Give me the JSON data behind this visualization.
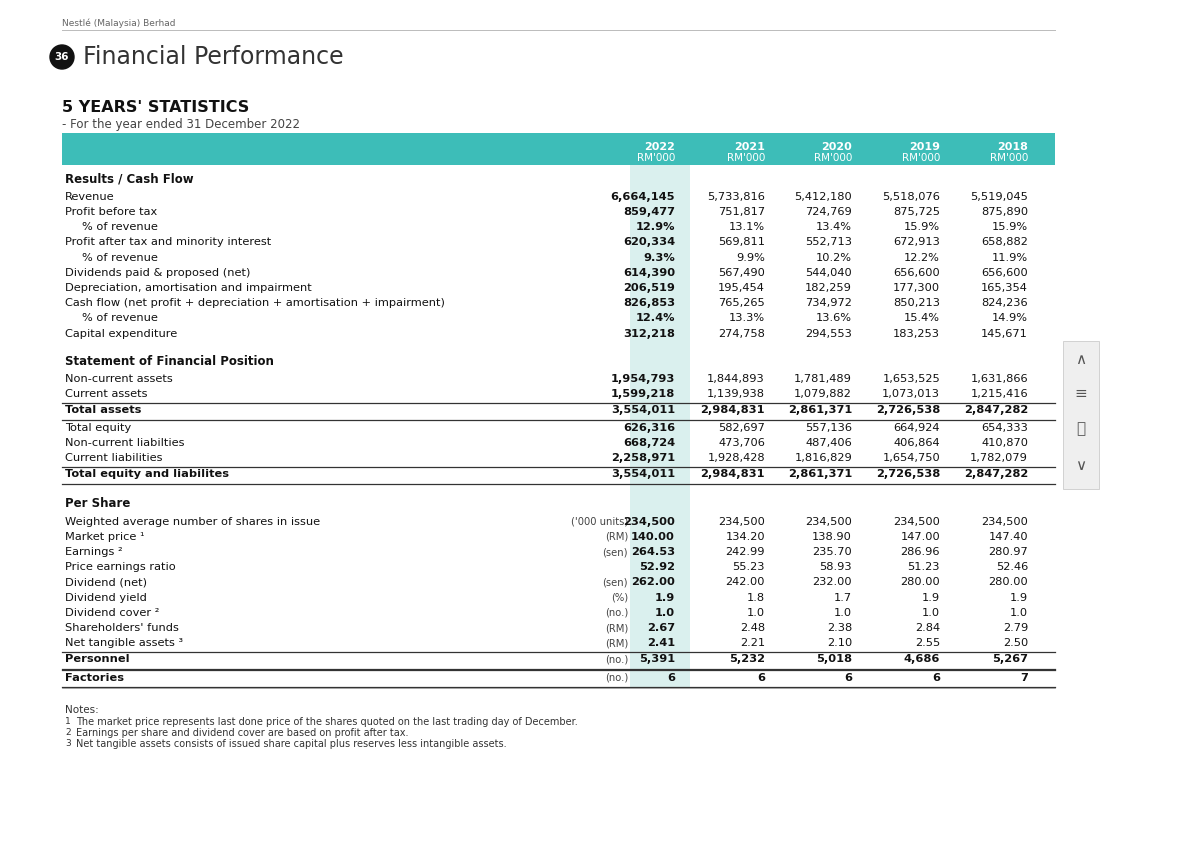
{
  "page_label": "Nestlé (Malaysia) Berhad",
  "page_number": "36",
  "title": "Financial Performance",
  "section_title": "5 YEARS' STATISTICS",
  "subtitle": "- For the year ended 31 December 2022",
  "years": [
    "2022",
    "2021",
    "2020",
    "2019",
    "2018"
  ],
  "header_color": "#3dbdb8",
  "highlight_col_color": "#daf0ee",
  "table_data": [
    {
      "label": "Results / Cash Flow",
      "type": "section_header",
      "values": [
        "",
        "",
        "",
        "",
        ""
      ],
      "unit": ""
    },
    {
      "label": "Revenue",
      "type": "data",
      "values": [
        "6,664,145",
        "5,733,816",
        "5,412,180",
        "5,518,076",
        "5,519,045"
      ],
      "unit": ""
    },
    {
      "label": "Profit before tax",
      "type": "data",
      "values": [
        "859,477",
        "751,817",
        "724,769",
        "875,725",
        "875,890"
      ],
      "unit": ""
    },
    {
      "label": "% of revenue",
      "type": "indent",
      "values": [
        "12.9%",
        "13.1%",
        "13.4%",
        "15.9%",
        "15.9%"
      ],
      "unit": ""
    },
    {
      "label": "Profit after tax and minority interest",
      "type": "data",
      "values": [
        "620,334",
        "569,811",
        "552,713",
        "672,913",
        "658,882"
      ],
      "unit": ""
    },
    {
      "label": "% of revenue",
      "type": "indent",
      "values": [
        "9.3%",
        "9.9%",
        "10.2%",
        "12.2%",
        "11.9%"
      ],
      "unit": ""
    },
    {
      "label": "Dividends paid & proposed (net)",
      "type": "data",
      "values": [
        "614,390",
        "567,490",
        "544,040",
        "656,600",
        "656,600"
      ],
      "unit": ""
    },
    {
      "label": "Depreciation, amortisation and impairment",
      "type": "data",
      "values": [
        "206,519",
        "195,454",
        "182,259",
        "177,300",
        "165,354"
      ],
      "unit": ""
    },
    {
      "label": "Cash flow (net profit + depreciation + amortisation + impairment)",
      "type": "data",
      "values": [
        "826,853",
        "765,265",
        "734,972",
        "850,213",
        "824,236"
      ],
      "unit": ""
    },
    {
      "label": "% of revenue",
      "type": "indent",
      "values": [
        "12.4%",
        "13.3%",
        "13.6%",
        "15.4%",
        "14.9%"
      ],
      "unit": ""
    },
    {
      "label": "Capital expenditure",
      "type": "data",
      "values": [
        "312,218",
        "274,758",
        "294,553",
        "183,253",
        "145,671"
      ],
      "unit": ""
    },
    {
      "label": "Statement of Financial Position",
      "type": "section_header",
      "values": [
        "",
        "",
        "",
        "",
        ""
      ],
      "unit": ""
    },
    {
      "label": "Non-current assets",
      "type": "data",
      "values": [
        "1,954,793",
        "1,844,893",
        "1,781,489",
        "1,653,525",
        "1,631,866"
      ],
      "unit": ""
    },
    {
      "label": "Current assets",
      "type": "data",
      "values": [
        "1,599,218",
        "1,139,938",
        "1,079,882",
        "1,073,013",
        "1,215,416"
      ],
      "unit": ""
    },
    {
      "label": "Total assets",
      "type": "bold_data",
      "values": [
        "3,554,011",
        "2,984,831",
        "2,861,371",
        "2,726,538",
        "2,847,282"
      ],
      "unit": ""
    },
    {
      "label": "Total equity",
      "type": "data",
      "values": [
        "626,316",
        "582,697",
        "557,136",
        "664,924",
        "654,333"
      ],
      "unit": ""
    },
    {
      "label": "Non-current liabilties",
      "type": "data",
      "values": [
        "668,724",
        "473,706",
        "487,406",
        "406,864",
        "410,870"
      ],
      "unit": ""
    },
    {
      "label": "Current liabilities",
      "type": "data",
      "values": [
        "2,258,971",
        "1,928,428",
        "1,816,829",
        "1,654,750",
        "1,782,079"
      ],
      "unit": ""
    },
    {
      "label": "Total equity and liabilites",
      "type": "bold_data",
      "values": [
        "3,554,011",
        "2,984,831",
        "2,861,371",
        "2,726,538",
        "2,847,282"
      ],
      "unit": ""
    },
    {
      "label": "Per Share",
      "type": "section_header",
      "values": [
        "",
        "",
        "",
        "",
        ""
      ],
      "unit": ""
    },
    {
      "label": "Weighted average number of shares in issue",
      "type": "data",
      "values": [
        "234,500",
        "234,500",
        "234,500",
        "234,500",
        "234,500"
      ],
      "unit": "('000 units)"
    },
    {
      "label": "Market price ¹",
      "type": "data",
      "values": [
        "140.00",
        "134.20",
        "138.90",
        "147.00",
        "147.40"
      ],
      "unit": "(RM)"
    },
    {
      "label": "Earnings ²",
      "type": "data",
      "values": [
        "264.53",
        "242.99",
        "235.70",
        "286.96",
        "280.97"
      ],
      "unit": "(sen)"
    },
    {
      "label": "Price earnings ratio",
      "type": "data",
      "values": [
        "52.92",
        "55.23",
        "58.93",
        "51.23",
        "52.46"
      ],
      "unit": ""
    },
    {
      "label": "Dividend (net)",
      "type": "data",
      "values": [
        "262.00",
        "242.00",
        "232.00",
        "280.00",
        "280.00"
      ],
      "unit": "(sen)"
    },
    {
      "label": "Dividend yield",
      "type": "data",
      "values": [
        "1.9",
        "1.8",
        "1.7",
        "1.9",
        "1.9"
      ],
      "unit": "(%)"
    },
    {
      "label": "Dividend cover ²",
      "type": "data",
      "values": [
        "1.0",
        "1.0",
        "1.0",
        "1.0",
        "1.0"
      ],
      "unit": "(no.)"
    },
    {
      "label": "Shareholders' funds",
      "type": "data",
      "values": [
        "2.67",
        "2.48",
        "2.38",
        "2.84",
        "2.79"
      ],
      "unit": "(RM)"
    },
    {
      "label": "Net tangible assets ³",
      "type": "data",
      "values": [
        "2.41",
        "2.21",
        "2.10",
        "2.55",
        "2.50"
      ],
      "unit": "(RM)"
    },
    {
      "label": "Personnel",
      "type": "bold_data",
      "values": [
        "5,391",
        "5,232",
        "5,018",
        "4,686",
        "5,267"
      ],
      "unit": "(no.)"
    },
    {
      "label": "Factories",
      "type": "bold_data",
      "values": [
        "6",
        "6",
        "6",
        "6",
        "7"
      ],
      "unit": "(no.)"
    }
  ],
  "notes": [
    "Notes:",
    "1   The market price represents last done price of the shares quoted on the last trading day of December.",
    "2   Earnings per share and dividend cover are based on profit after tax.",
    "3   Net tangible assets consists of issued share capital plus reserves less intangible assets."
  ],
  "bg_color": "#ffffff"
}
